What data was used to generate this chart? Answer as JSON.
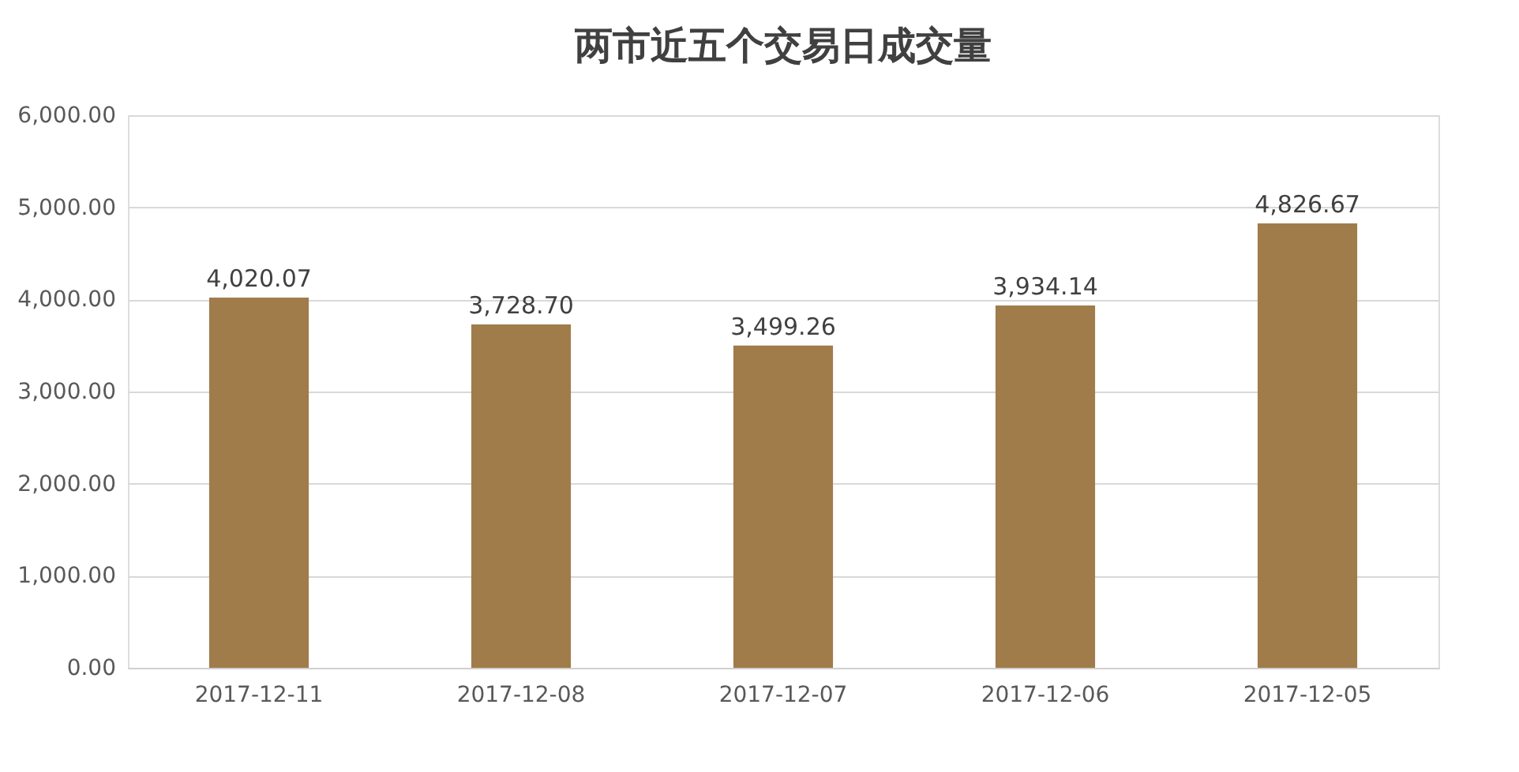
{
  "chart_data": {
    "type": "bar",
    "title": "两市近五个交易日成交量",
    "categories": [
      "2017-12-11",
      "2017-12-08",
      "2017-12-07",
      "2017-12-06",
      "2017-12-05"
    ],
    "values": [
      4020.07,
      3728.7,
      3499.26,
      3934.14,
      4826.67
    ],
    "value_labels": [
      "4,020.07",
      "3,728.70",
      "3,499.26",
      "3,934.14",
      "4,826.67"
    ],
    "color": "#a07c4a",
    "ylim": [
      0,
      6000
    ],
    "yticks": [
      {
        "value": 0,
        "label": "0.00"
      },
      {
        "value": 1000,
        "label": "1,000.00"
      },
      {
        "value": 2000,
        "label": "2,000.00"
      },
      {
        "value": 3000,
        "label": "3,000.00"
      },
      {
        "value": 4000,
        "label": "4,000.00"
      },
      {
        "value": 5000,
        "label": "5,000.00"
      },
      {
        "value": 6000,
        "label": "6,000.00"
      }
    ],
    "grid": "y"
  }
}
